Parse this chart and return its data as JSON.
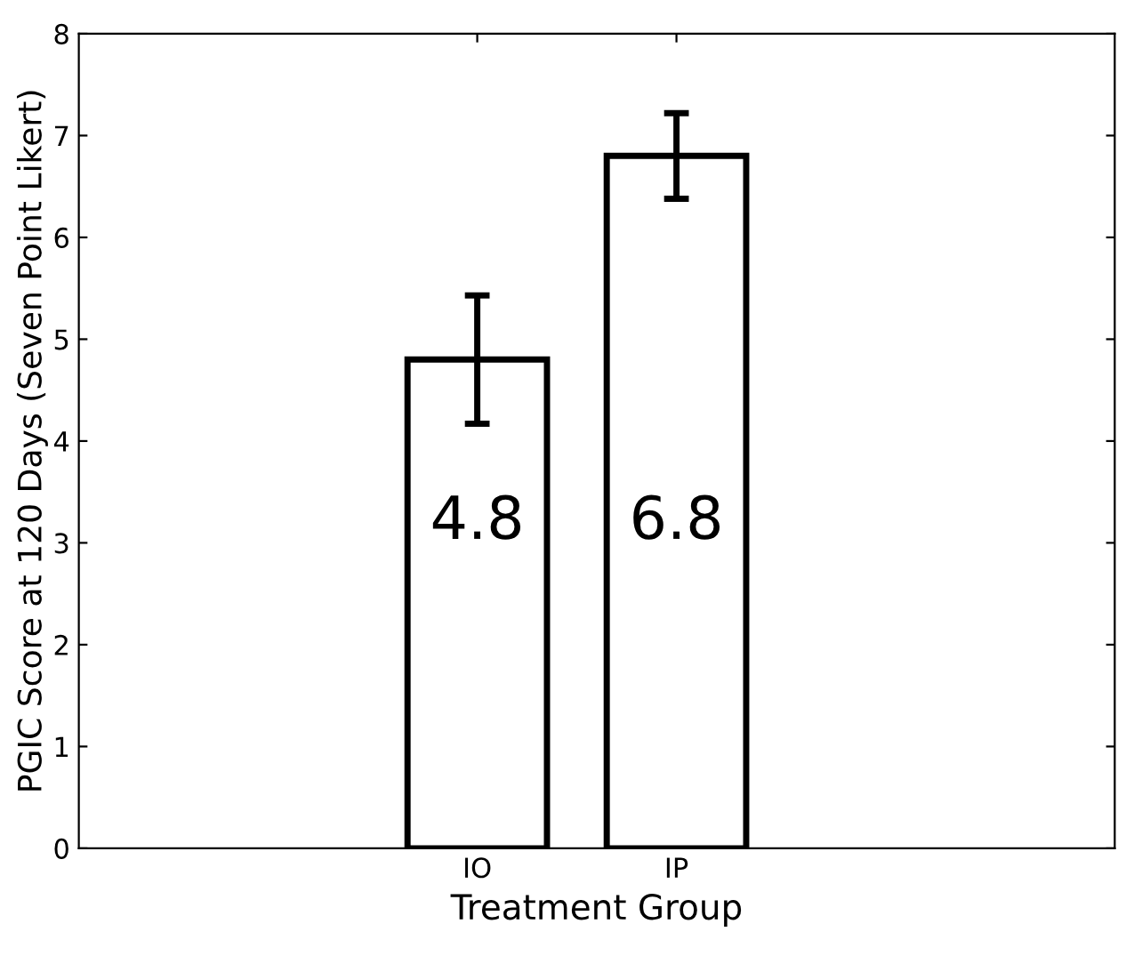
{
  "chart_data": {
    "type": "bar",
    "xlabel": "Treatment Group",
    "ylabel": "PGIC Score at 120 Days (Seven Point Likert)",
    "categories": [
      "IO",
      "IP"
    ],
    "values": [
      4.8,
      6.8
    ],
    "errors": [
      0.63,
      0.42
    ],
    "color": "#ffffff",
    "ylim": [
      0,
      8
    ],
    "yticks": [
      0,
      1,
      2,
      3,
      4,
      5,
      6,
      7,
      8
    ],
    "data_labels": true,
    "grid": false,
    "legend": false
  }
}
